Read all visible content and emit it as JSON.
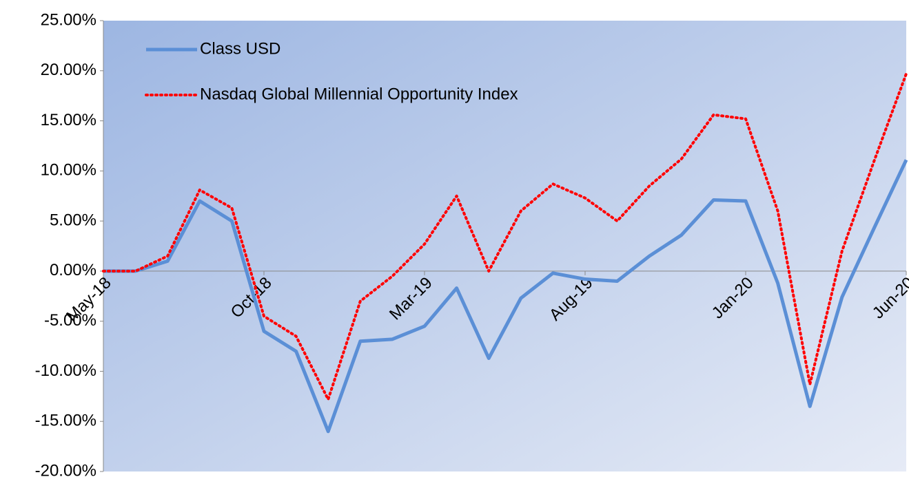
{
  "chart_data": {
    "type": "line",
    "categories": [
      "May-18",
      null,
      null,
      null,
      null,
      "Oct-18",
      null,
      null,
      null,
      null,
      "Mar-19",
      null,
      null,
      null,
      null,
      "Aug-19",
      null,
      null,
      null,
      null,
      "Jan-20",
      null,
      null,
      null,
      null,
      "Jun-20"
    ],
    "series": [
      {
        "name": "Class USD",
        "color": "#5b8fd6",
        "values": [
          0,
          0,
          1.0,
          7.0,
          5.0,
          -6.0,
          -8.0,
          -16.0,
          -7.0,
          -6.8,
          -5.5,
          -1.7,
          -8.7,
          -2.7,
          -0.2,
          -0.8,
          -1.0,
          1.5,
          3.6,
          7.1,
          7.0,
          -1.2,
          -13.5,
          -2.6,
          4.3,
          11.1
        ]
      },
      {
        "name": "Nasdaq Global Millennial Opportunity Index",
        "color": "#ff0000",
        "values": [
          0,
          0,
          1.5,
          8.1,
          6.3,
          -4.5,
          -6.5,
          -12.8,
          -3.0,
          -0.5,
          2.7,
          7.5,
          0,
          6.0,
          8.7,
          7.3,
          5.0,
          8.5,
          11.2,
          15.6,
          15.2,
          6.0,
          -11.3,
          2.0,
          11.0,
          19.7
        ]
      }
    ],
    "ylim": [
      -20,
      25
    ],
    "yticks": [
      {
        "value": -20,
        "label": "-20.00%"
      },
      {
        "value": -15,
        "label": "-15.00%"
      },
      {
        "value": -10,
        "label": "-10.00%"
      },
      {
        "value": -5,
        "label": "-5.00%"
      },
      {
        "value": 0,
        "label": "0.00%"
      },
      {
        "value": 5,
        "label": "5.00%"
      },
      {
        "value": 10,
        "label": "10.00%"
      },
      {
        "value": 15,
        "label": "15.00%"
      },
      {
        "value": 20,
        "label": "20.00%"
      },
      {
        "value": 25,
        "label": "25.00%"
      }
    ],
    "grid": false,
    "legend": "top-left"
  }
}
